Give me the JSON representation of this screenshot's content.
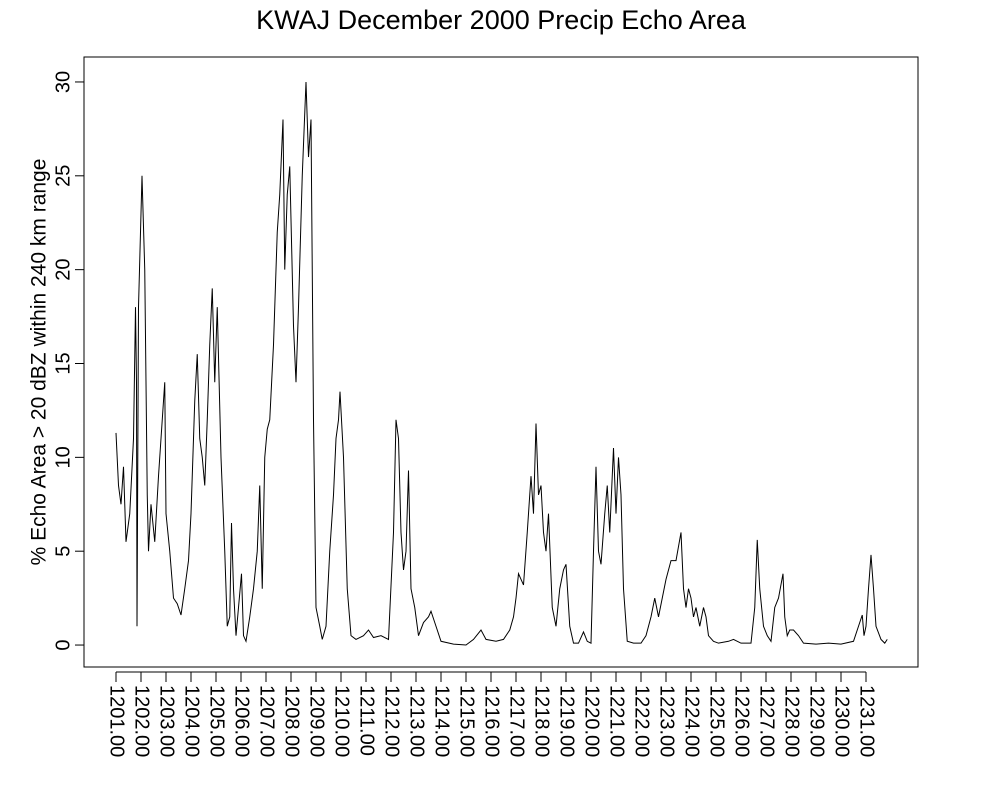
{
  "chart_data": {
    "type": "line",
    "title": "KWAJ December 2000 Precip Echo Area",
    "y_label": "% Echo Area > 20 dBZ within 240 km range",
    "color": "#000000",
    "xlim": [
      1199.72,
      1233.08
    ],
    "ylim": [
      -1.17,
      31.33
    ],
    "yticks": [
      0,
      5,
      10,
      15,
      20,
      25,
      30
    ],
    "xticks": [
      {
        "value": 1201,
        "label": "1201.00"
      },
      {
        "value": 1202,
        "label": "1202.00"
      },
      {
        "value": 1203,
        "label": "1203.00"
      },
      {
        "value": 1204,
        "label": "1204.00"
      },
      {
        "value": 1205,
        "label": "1205.00"
      },
      {
        "value": 1206,
        "label": "1206.00"
      },
      {
        "value": 1207,
        "label": "1207.00"
      },
      {
        "value": 1208,
        "label": "1208.00"
      },
      {
        "value": 1209,
        "label": "1209.00"
      },
      {
        "value": 1210,
        "label": "1210.00"
      },
      {
        "value": 1211,
        "label": "1211.00"
      },
      {
        "value": 1212,
        "label": "1212.00"
      },
      {
        "value": 1213,
        "label": "1213.00"
      },
      {
        "value": 1214,
        "label": "1214.00"
      },
      {
        "value": 1215,
        "label": "1215.00"
      },
      {
        "value": 1216,
        "label": "1216.00"
      },
      {
        "value": 1217,
        "label": "1217.00"
      },
      {
        "value": 1218,
        "label": "1218.00"
      },
      {
        "value": 1219,
        "label": "1219.00"
      },
      {
        "value": 1220,
        "label": "1220.00"
      },
      {
        "value": 1221,
        "label": "1221.00"
      },
      {
        "value": 1222,
        "label": "1222.00"
      },
      {
        "value": 1223,
        "label": "1223.00"
      },
      {
        "value": 1224,
        "label": "1224.00"
      },
      {
        "value": 1225,
        "label": "1225.00"
      },
      {
        "value": 1226,
        "label": "1226.00"
      },
      {
        "value": 1227,
        "label": "1227.00"
      },
      {
        "value": 1228,
        "label": "1228.00"
      },
      {
        "value": 1229,
        "label": "1229.00"
      },
      {
        "value": 1230,
        "label": "1230.00"
      },
      {
        "value": 1231,
        "label": "1231.00"
      }
    ],
    "x": [
      1201.0,
      1201.1,
      1201.2,
      1201.3,
      1201.4,
      1201.55,
      1201.7,
      1201.78,
      1201.82,
      1201.84,
      1201.9,
      1202.04,
      1202.15,
      1202.25,
      1202.3,
      1202.4,
      1202.55,
      1202.7,
      1202.85,
      1202.95,
      1203.0,
      1203.15,
      1203.3,
      1203.45,
      1203.6,
      1203.75,
      1203.9,
      1204.0,
      1204.15,
      1204.25,
      1204.35,
      1204.45,
      1204.55,
      1204.65,
      1204.75,
      1204.85,
      1204.95,
      1205.05,
      1205.2,
      1205.35,
      1205.45,
      1205.55,
      1205.62,
      1205.7,
      1205.8,
      1205.9,
      1206.02,
      1206.1,
      1206.2,
      1206.35,
      1206.5,
      1206.65,
      1206.75,
      1206.85,
      1206.95,
      1207.05,
      1207.15,
      1207.3,
      1207.45,
      1207.55,
      1207.68,
      1207.75,
      1207.85,
      1207.95,
      1208.1,
      1208.2,
      1208.3,
      1208.45,
      1208.6,
      1208.7,
      1208.8,
      1208.9,
      1209.0,
      1209.15,
      1209.25,
      1209.4,
      1209.55,
      1209.7,
      1209.8,
      1209.9,
      1209.96,
      1210.1,
      1210.25,
      1210.4,
      1210.6,
      1210.9,
      1211.1,
      1211.3,
      1211.6,
      1211.9,
      1212.1,
      1212.2,
      1212.3,
      1212.4,
      1212.5,
      1212.6,
      1212.7,
      1212.8,
      1212.95,
      1213.1,
      1213.3,
      1213.5,
      1213.6,
      1213.8,
      1214.0,
      1214.5,
      1215.0,
      1215.3,
      1215.6,
      1215.8,
      1216.2,
      1216.5,
      1216.75,
      1216.9,
      1217.0,
      1217.1,
      1217.3,
      1217.45,
      1217.6,
      1217.7,
      1217.8,
      1217.9,
      1218.0,
      1218.1,
      1218.2,
      1218.3,
      1218.45,
      1218.6,
      1218.75,
      1218.9,
      1219.0,
      1219.15,
      1219.3,
      1219.5,
      1219.7,
      1219.85,
      1220.0,
      1220.1,
      1220.2,
      1220.3,
      1220.4,
      1220.55,
      1220.65,
      1220.75,
      1220.9,
      1221.0,
      1221.1,
      1221.2,
      1221.3,
      1221.45,
      1221.7,
      1222.0,
      1222.2,
      1222.4,
      1222.55,
      1222.7,
      1222.85,
      1223.0,
      1223.2,
      1223.4,
      1223.6,
      1223.7,
      1223.8,
      1223.9,
      1224.0,
      1224.1,
      1224.2,
      1224.35,
      1224.5,
      1224.6,
      1224.7,
      1224.9,
      1225.1,
      1225.5,
      1225.7,
      1226.0,
      1226.4,
      1226.55,
      1226.65,
      1226.75,
      1226.9,
      1227.05,
      1227.2,
      1227.35,
      1227.5,
      1227.68,
      1227.75,
      1227.85,
      1227.95,
      1228.1,
      1228.3,
      1228.5,
      1229.0,
      1229.5,
      1230.0,
      1230.5,
      1230.7,
      1230.85,
      1230.92,
      1231.0,
      1231.1,
      1231.2,
      1231.3,
      1231.4,
      1231.6,
      1231.75,
      1231.85
    ],
    "values": [
      11.3,
      8.5,
      7.5,
      9.5,
      5.5,
      7,
      11,
      18,
      14,
      1.0,
      18,
      25,
      20,
      8,
      5,
      7.5,
      5.5,
      9,
      12,
      14,
      7,
      5,
      2.5,
      2.2,
      1.6,
      3,
      4.5,
      7,
      13,
      15.5,
      11,
      10,
      8.5,
      12,
      16,
      19,
      14,
      18,
      10,
      5,
      1,
      1.5,
      6.5,
      3,
      0.5,
      2,
      3.8,
      0.5,
      0.2,
      1.5,
      3,
      5,
      8.5,
      3,
      10,
      11.5,
      12,
      16,
      22,
      24,
      28,
      20,
      24,
      25.5,
      17,
      14,
      18,
      25,
      30,
      26,
      28,
      12,
      2,
      1,
      0.3,
      1,
      5,
      8,
      11,
      12,
      13.5,
      10,
      3,
      0.5,
      0.3,
      0.5,
      0.8,
      0.4,
      0.5,
      0.3,
      6,
      12,
      11,
      6,
      4,
      5,
      9.3,
      3,
      2,
      0.5,
      1.2,
      1.5,
      1.8,
      1,
      0.2,
      0.05,
      0,
      0.3,
      0.8,
      0.3,
      0.2,
      0.3,
      0.8,
      1.5,
      2.5,
      3.8,
      3.2,
      6,
      9,
      7,
      11.8,
      8,
      8.5,
      6,
      5,
      7,
      2,
      1,
      3,
      4,
      4.3,
      1,
      0.1,
      0.1,
      0.7,
      0.2,
      0.1,
      5,
      9.5,
      5,
      4.3,
      7,
      8.5,
      6,
      10.5,
      7,
      10,
      8,
      3,
      0.2,
      0.1,
      0.1,
      0.5,
      1.5,
      2.5,
      1.5,
      2.5,
      3.5,
      4.5,
      4.5,
      6,
      3,
      2,
      3,
      2.5,
      1.5,
      2,
      1,
      2,
      1.5,
      0.5,
      0.2,
      0.1,
      0.2,
      0.3,
      0.1,
      0.1,
      2,
      5.6,
      3,
      1,
      0.5,
      0.2,
      2,
      2.5,
      3.8,
      1.5,
      0.5,
      0.8,
      0.8,
      0.5,
      0.1,
      0.05,
      0.1,
      0.05,
      0.2,
      1,
      1.6,
      0.5,
      1,
      3,
      4.8,
      3,
      1,
      0.3,
      0.1,
      0.3
    ]
  }
}
